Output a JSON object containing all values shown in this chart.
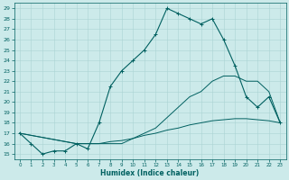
{
  "title": "",
  "xlabel": "Humidex (Indice chaleur)",
  "xlim": [
    -0.5,
    23.5
  ],
  "ylim": [
    14.5,
    29.5
  ],
  "yticks": [
    15,
    16,
    17,
    18,
    19,
    20,
    21,
    22,
    23,
    24,
    25,
    26,
    27,
    28,
    29
  ],
  "xticks": [
    0,
    1,
    2,
    3,
    4,
    5,
    6,
    7,
    8,
    9,
    10,
    11,
    12,
    13,
    14,
    15,
    16,
    17,
    18,
    19,
    20,
    21,
    22,
    23
  ],
  "bg_color": "#cceaea",
  "grid_color": "#aad4d4",
  "line_color": "#006060",
  "line1": {
    "x": [
      0,
      1,
      2,
      3,
      4,
      5,
      6,
      7,
      8,
      9,
      10,
      11,
      12,
      13,
      14,
      15,
      16,
      17,
      18,
      19,
      20,
      21,
      22,
      23
    ],
    "y": [
      17.0,
      16.0,
      15.0,
      15.3,
      15.3,
      16.0,
      15.5,
      18.0,
      21.5,
      23.0,
      24.0,
      25.0,
      26.5,
      29.0,
      28.5,
      28.0,
      27.5,
      28.0,
      26.0,
      23.5,
      20.5,
      19.5,
      20.5,
      18.0
    ]
  },
  "line2": {
    "x": [
      0,
      5,
      6,
      7,
      8,
      9,
      10,
      11,
      12,
      13,
      14,
      15,
      16,
      17,
      18,
      19,
      20,
      21,
      22,
      23
    ],
    "y": [
      17.0,
      16.0,
      16.0,
      16.0,
      16.0,
      16.0,
      16.5,
      17.0,
      17.5,
      18.5,
      19.5,
      20.5,
      21.0,
      22.0,
      22.5,
      22.5,
      22.0,
      22.0,
      21.0,
      18.0
    ]
  },
  "line3": {
    "x": [
      0,
      5,
      6,
      7,
      8,
      9,
      10,
      11,
      12,
      13,
      14,
      15,
      16,
      17,
      18,
      19,
      20,
      21,
      22,
      23
    ],
    "y": [
      17.0,
      16.0,
      16.0,
      16.0,
      16.2,
      16.3,
      16.5,
      16.8,
      17.0,
      17.3,
      17.5,
      17.8,
      18.0,
      18.2,
      18.3,
      18.4,
      18.4,
      18.3,
      18.2,
      18.0
    ]
  }
}
